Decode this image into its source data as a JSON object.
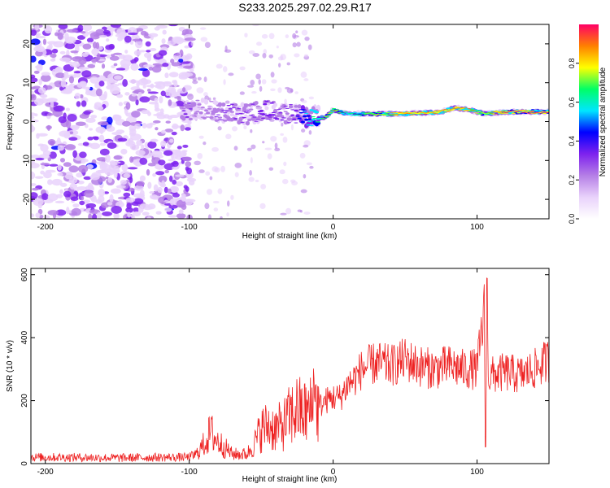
{
  "title": "S233.2025.297.02.29.R17",
  "chart_data": [
    {
      "type": "heatmap",
      "xlabel": "Height of straight line (km)",
      "ylabel": "Frequency (Hz)",
      "xlim": [
        -210,
        150
      ],
      "ylim": [
        -25,
        25
      ],
      "xticks": [
        -200,
        -100,
        0,
        100
      ],
      "yticks": [
        -20,
        -10,
        0,
        10,
        20
      ],
      "colorbar": {
        "label": "Normalized spectral amplitude",
        "range": [
          0,
          1
        ],
        "ticks": [
          0.0,
          0.2,
          0.4,
          0.6,
          0.8
        ],
        "tick_labels": [
          "0.0",
          "0.2",
          "0.4",
          "0.6",
          "0.8"
        ],
        "colors": [
          "#ffffff",
          "#e9d2fb",
          "#b57fe6",
          "#7e22ee",
          "#0000ff",
          "#00e6ff",
          "#00ff66",
          "#ffff00",
          "#ff8000",
          "#ff0066"
        ]
      },
      "ridge": {
        "description_points_x": [
          -105,
          -90,
          -75,
          -60,
          -45,
          -30,
          -15,
          -5,
          0,
          10,
          25,
          50,
          75,
          85,
          95,
          105,
          120,
          150
        ],
        "frequency_hz": [
          3,
          3,
          2.5,
          2,
          3,
          2,
          1,
          1,
          3,
          2,
          2,
          2,
          2.5,
          3.5,
          3,
          2,
          2.5,
          2.5
        ],
        "amplitude": [
          0.3,
          0.25,
          0.3,
          0.3,
          0.35,
          0.3,
          0.6,
          0.75,
          0.85,
          0.6,
          0.75,
          0.9,
          0.9,
          0.9,
          0.85,
          0.8,
          0.95,
          0.95
        ]
      }
    },
    {
      "type": "line",
      "xlabel": "Height of straight line (km)",
      "ylabel": "SNR (10 * v/v)",
      "xlim": [
        -210,
        150
      ],
      "ylim": [
        0,
        620
      ],
      "xticks": [
        -200,
        -100,
        0,
        100
      ],
      "yticks": [
        0,
        200,
        400,
        600
      ],
      "series": [
        {
          "name": "SNR",
          "color": "#ee2222",
          "x": [
            -210,
            -180,
            -150,
            -120,
            -100,
            -95,
            -90,
            -85,
            -80,
            -75,
            -70,
            -60,
            -55,
            -50,
            -45,
            -40,
            -35,
            -30,
            -25,
            -20,
            -15,
            -10,
            -5,
            0,
            5,
            10,
            15,
            20,
            25,
            30,
            40,
            50,
            60,
            70,
            80,
            90,
            100,
            105,
            106,
            107,
            108,
            110,
            120,
            130,
            140,
            150
          ],
          "values": [
            20,
            20,
            18,
            20,
            20,
            30,
            60,
            100,
            70,
            50,
            30,
            30,
            60,
            110,
            120,
            110,
            120,
            150,
            170,
            160,
            170,
            180,
            200,
            210,
            210,
            250,
            270,
            300,
            310,
            320,
            310,
            330,
            310,
            300,
            310,
            300,
            300,
            480,
            40,
            620,
            260,
            280,
            290,
            280,
            300,
            330
          ]
        }
      ]
    }
  ]
}
